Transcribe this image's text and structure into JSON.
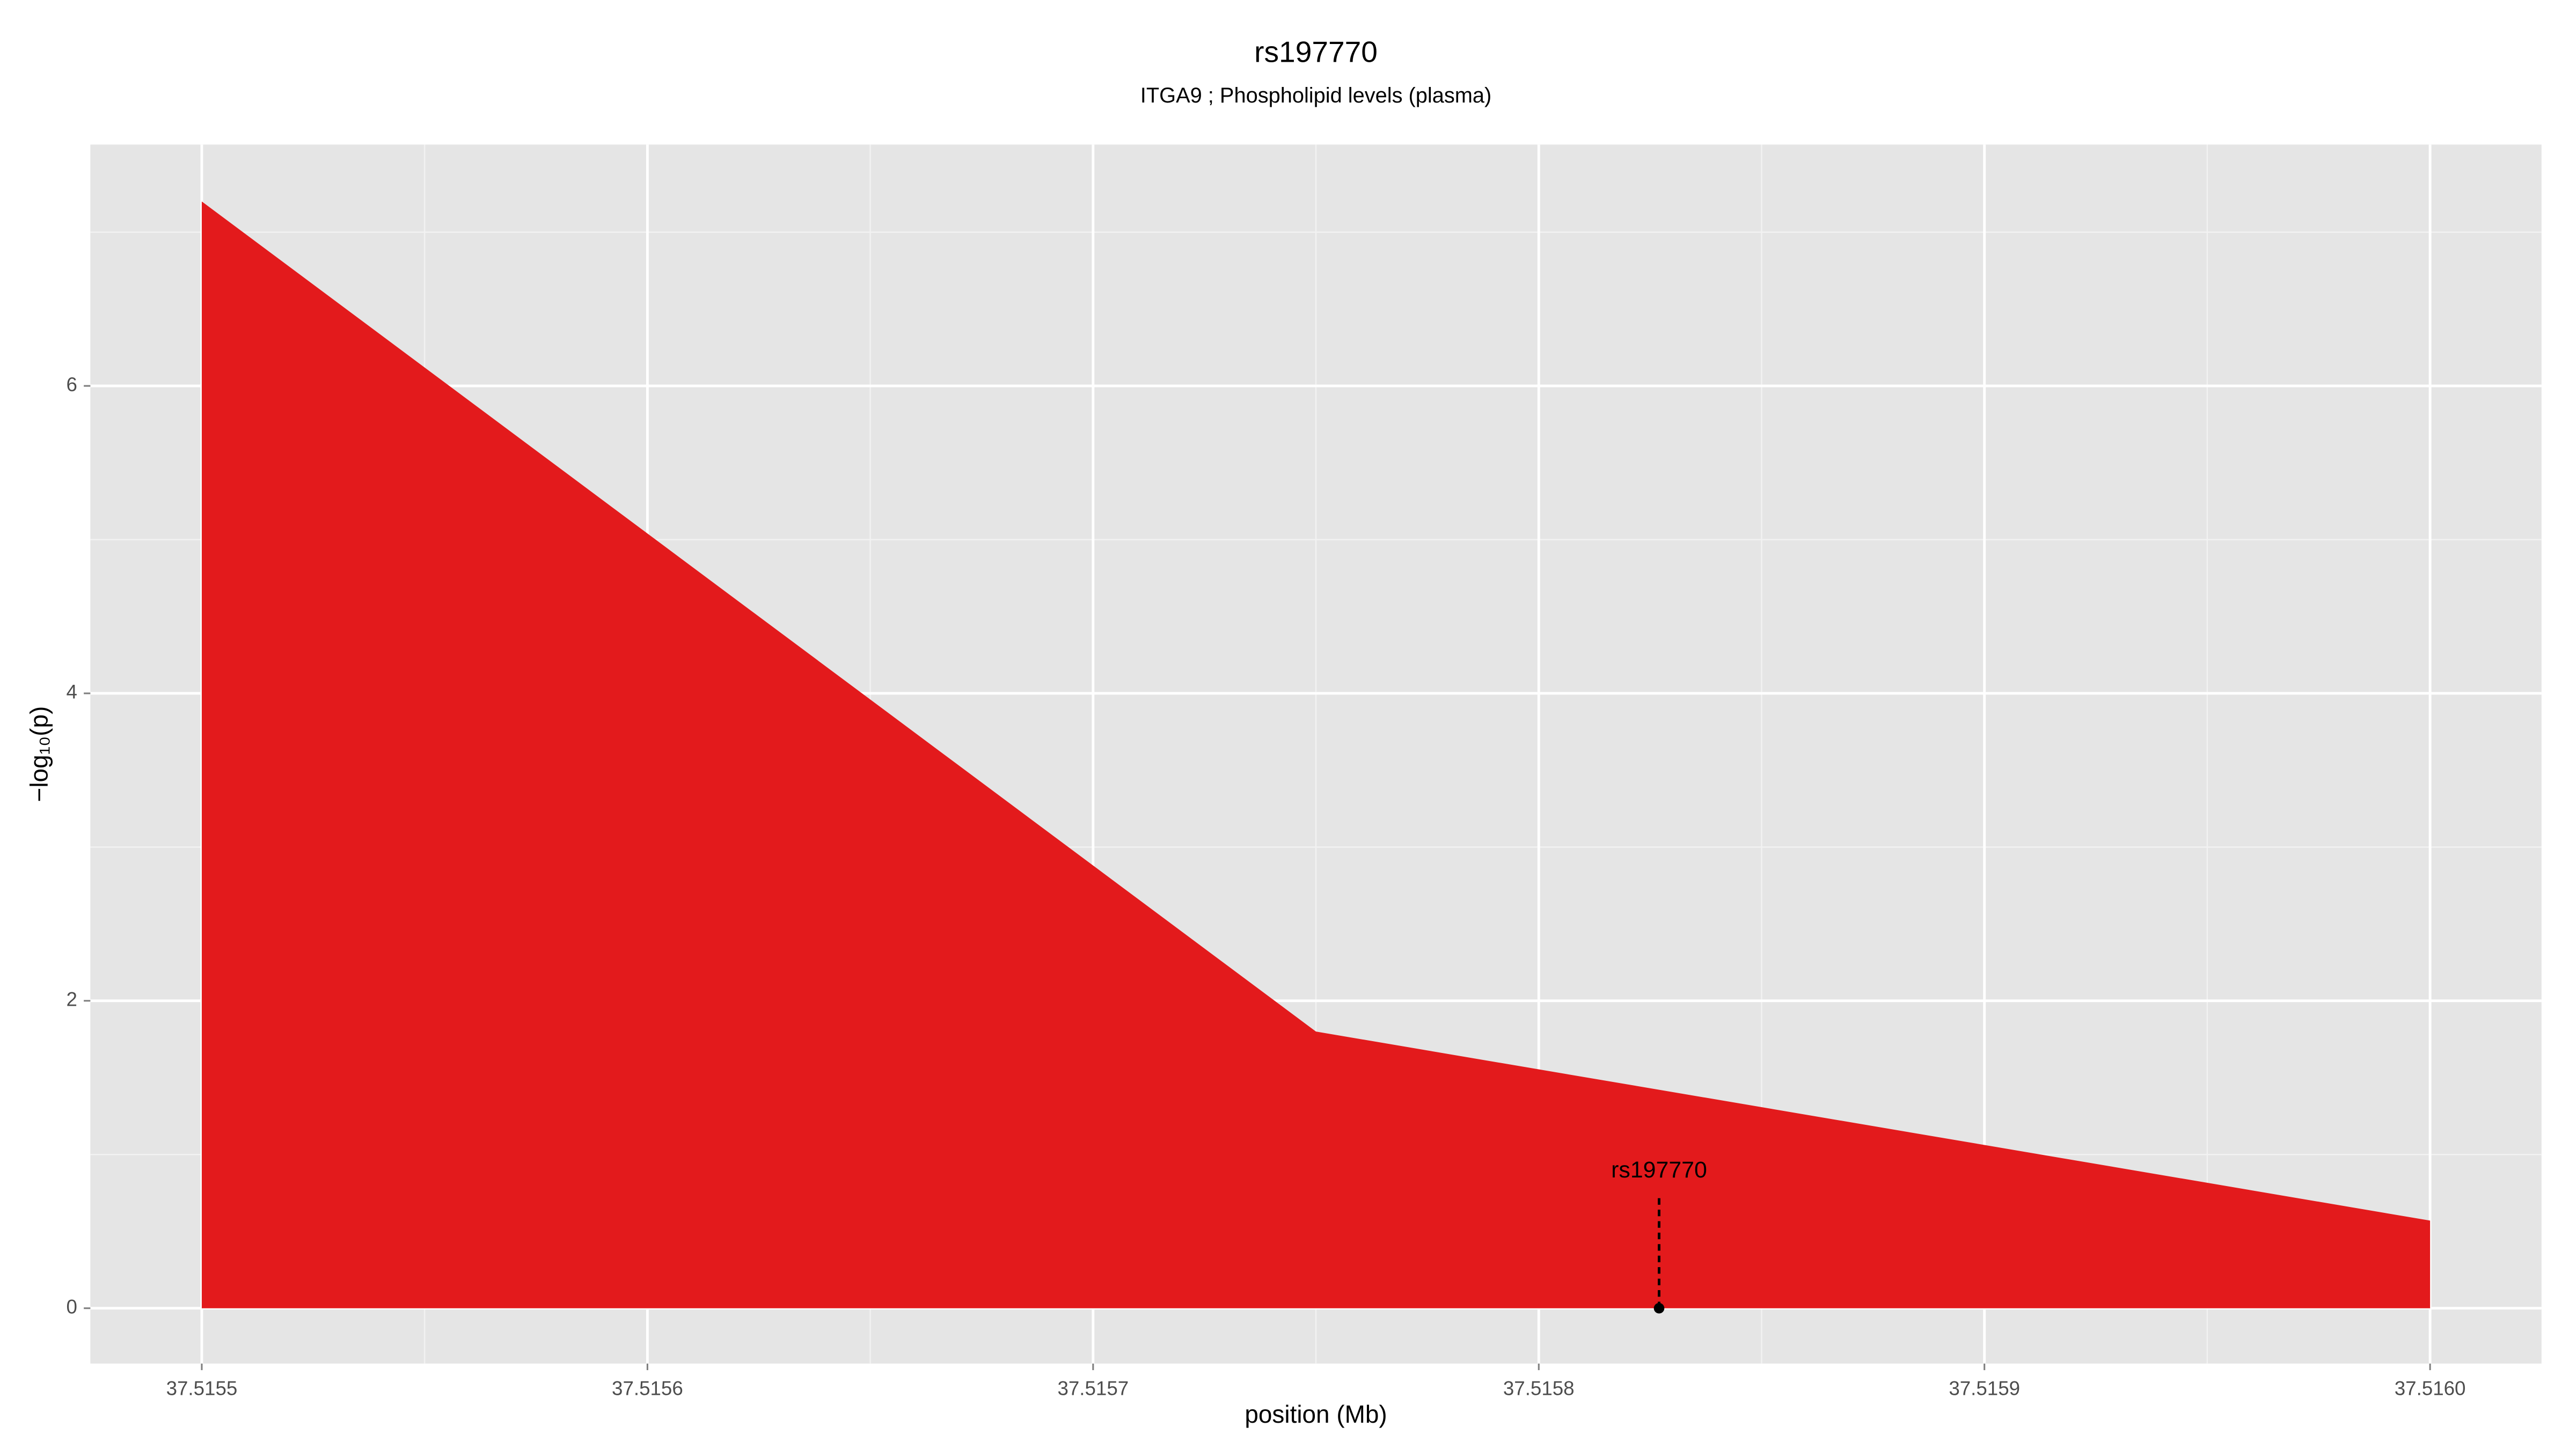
{
  "chart_data": {
    "type": "area",
    "title": "rs197770",
    "subtitle": "ITGA9 ; Phospholipid levels (plasma)",
    "x_label": "position (Mb)",
    "y_label": "−log₁₀(p)",
    "x": [
      37.5155,
      37.51575,
      37.516
    ],
    "series": [
      {
        "color": "#e31a1c",
        "values": [
          7.2,
          1.8,
          0.57
        ]
      }
    ],
    "xlim": [
      37.515475,
      37.516025
    ],
    "ylim": [
      -0.36,
      7.57
    ],
    "xticks": [
      37.5155,
      37.5156,
      37.5157,
      37.5158,
      37.5159,
      {
        "value": 37.516,
        "label": "37.5160"
      }
    ],
    "yticks": [
      0,
      2,
      4,
      6
    ],
    "grid": true,
    "annotation": {
      "label": "rs197770",
      "x": 37.515827,
      "y": 0,
      "line_top": 0.72
    }
  }
}
